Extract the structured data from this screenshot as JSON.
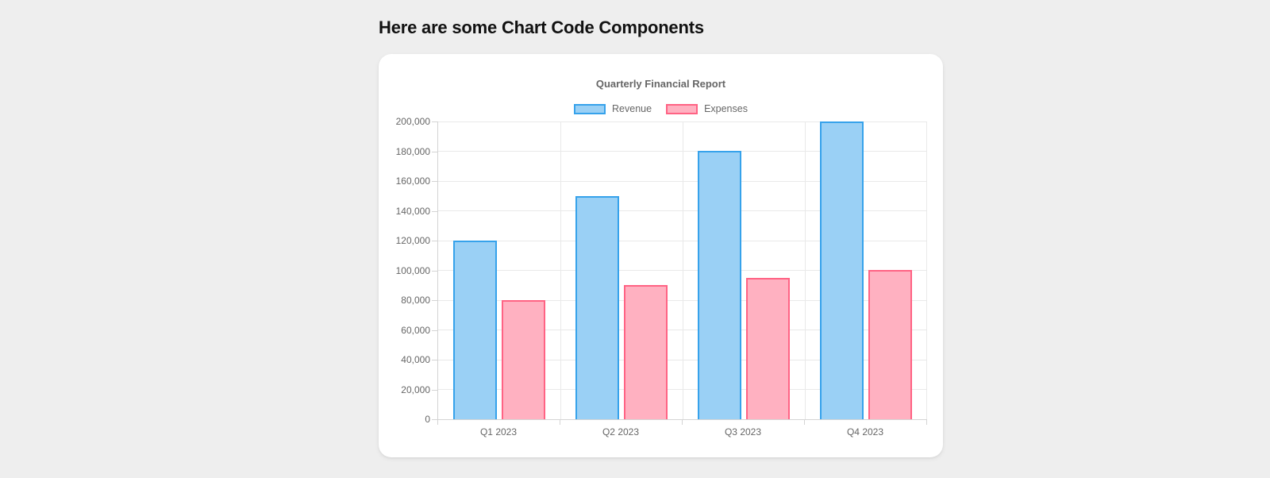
{
  "page": {
    "heading": "Here are some Chart Code Components"
  },
  "chart_data": {
    "type": "bar",
    "title": "Quarterly Financial Report",
    "categories": [
      "Q1 2023",
      "Q2 2023",
      "Q3 2023",
      "Q4 2023"
    ],
    "series": [
      {
        "name": "Revenue",
        "values": [
          120000,
          150000,
          180000,
          200000
        ],
        "fill_color": "#9AD0F5",
        "border_color": "#36A2EB"
      },
      {
        "name": "Expenses",
        "values": [
          80000,
          90000,
          95000,
          100000
        ],
        "fill_color": "#FFB1C1",
        "border_color": "#FF6384"
      }
    ],
    "xlabel": "",
    "ylabel": "",
    "ylim": [
      0,
      200000
    ],
    "ytick_step": 20000,
    "ytick_labels": [
      "0",
      "20,000",
      "40,000",
      "60,000",
      "80,000",
      "100,000",
      "120,000",
      "140,000",
      "160,000",
      "180,000",
      "200,000"
    ],
    "grid": true,
    "legend_position": "top"
  },
  "theme": {
    "page_bg": "#eeeeee",
    "card_bg": "#ffffff",
    "heading_color": "#111111",
    "text_color": "#666666",
    "grid_color": "#e9e9e9",
    "axis_color": "#d4d4d4"
  }
}
